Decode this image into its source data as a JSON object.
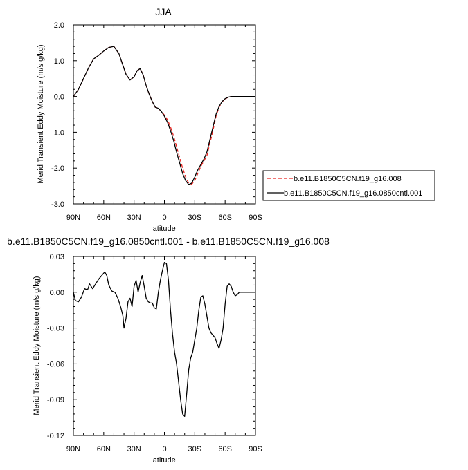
{
  "chart_data": [
    {
      "type": "line",
      "title": "JJA",
      "xlabel": "latitude",
      "ylabel": "Merid Transient Eddy Moisture (m/s g/kg)",
      "xlim": [
        -90,
        90
      ],
      "ylim": [
        -3.0,
        2.0
      ],
      "xticks": [
        -90,
        -60,
        -30,
        0,
        30,
        60,
        90
      ],
      "xtick_labels": [
        "90N",
        "60N",
        "30N",
        "0",
        "30S",
        "60S",
        "90S"
      ],
      "yticks": [
        2.0,
        1.0,
        0.0,
        -1.0,
        -2.0,
        -3.0
      ],
      "ytick_labels": [
        "2.0",
        "1.0",
        "0.0",
        "-1.0",
        "-2.0",
        "-3.0"
      ],
      "legend": "right",
      "series": [
        {
          "name": "b.e11.B1850C5CN.f19_g16.008",
          "color": "#e8211d",
          "dash": "dashed",
          "x": [
            -90,
            -85,
            -80,
            -75,
            -70,
            -65,
            -60,
            -55,
            -50,
            -45,
            -42,
            -38,
            -34,
            -30,
            -27,
            -24,
            -21,
            -18,
            -15,
            -12,
            -9,
            -6,
            -3,
            0,
            3,
            6,
            9,
            12,
            15,
            18,
            21,
            24,
            27,
            30,
            33,
            36,
            39,
            42,
            45,
            48,
            51,
            54,
            57,
            60,
            63,
            66,
            69,
            72,
            75,
            78,
            81,
            84,
            87,
            90
          ],
          "y": [
            0.0,
            0.2,
            0.5,
            0.8,
            1.05,
            1.15,
            1.27,
            1.37,
            1.4,
            1.2,
            0.95,
            0.62,
            0.46,
            0.55,
            0.72,
            0.78,
            0.6,
            0.3,
            0.06,
            -0.14,
            -0.3,
            -0.33,
            -0.42,
            -0.52,
            -0.65,
            -0.85,
            -1.1,
            -1.4,
            -1.7,
            -2.0,
            -2.25,
            -2.42,
            -2.45,
            -2.35,
            -2.15,
            -1.95,
            -1.8,
            -1.65,
            -1.3,
            -0.95,
            -0.55,
            -0.3,
            -0.15,
            -0.07,
            -0.02,
            0.0,
            0.0,
            0.0,
            0.0,
            0.0,
            0.0,
            0.0,
            0.0,
            0.0
          ]
        },
        {
          "name": "b.e11.B1850C5CN.f19_g16.0850cntl.001",
          "color": "#000000",
          "dash": "solid",
          "x": [
            -90,
            -85,
            -80,
            -75,
            -70,
            -65,
            -60,
            -55,
            -50,
            -45,
            -42,
            -38,
            -34,
            -30,
            -27,
            -24,
            -21,
            -18,
            -15,
            -12,
            -9,
            -6,
            -3,
            0,
            3,
            6,
            9,
            12,
            15,
            18,
            21,
            24,
            27,
            30,
            33,
            36,
            39,
            42,
            45,
            48,
            51,
            54,
            57,
            60,
            63,
            66,
            69,
            72,
            75,
            78,
            81,
            84,
            87,
            90
          ],
          "y": [
            0.0,
            0.2,
            0.5,
            0.8,
            1.05,
            1.15,
            1.27,
            1.37,
            1.4,
            1.2,
            0.95,
            0.62,
            0.46,
            0.55,
            0.72,
            0.78,
            0.6,
            0.3,
            0.06,
            -0.14,
            -0.3,
            -0.33,
            -0.42,
            -0.55,
            -0.72,
            -0.95,
            -1.22,
            -1.55,
            -1.85,
            -2.15,
            -2.35,
            -2.46,
            -2.42,
            -2.25,
            -2.05,
            -1.9,
            -1.75,
            -1.55,
            -1.2,
            -0.85,
            -0.5,
            -0.28,
            -0.14,
            -0.06,
            -0.02,
            0.0,
            0.0,
            0.0,
            0.0,
            0.0,
            0.0,
            0.0,
            0.0,
            0.0
          ]
        }
      ]
    },
    {
      "type": "line",
      "title": "b.e11.B1850C5CN.f19_g16.0850cntl.001 - b.e11.B1850C5CN.f19_g16.008",
      "xlabel": "latitude",
      "ylabel": "Merid Transient Eddy Moisture (m/s g/kg)",
      "xlim": [
        -90,
        90
      ],
      "ylim": [
        -0.12,
        0.03
      ],
      "xticks": [
        -90,
        -60,
        -30,
        0,
        30,
        60,
        90
      ],
      "xtick_labels": [
        "90N",
        "60N",
        "30N",
        "0",
        "30S",
        "60S",
        "90S"
      ],
      "yticks": [
        0.03,
        0.0,
        -0.03,
        -0.06,
        -0.09,
        -0.12
      ],
      "ytick_labels": [
        "0.03",
        "0.00",
        "-0.03",
        "-0.06",
        "-0.09",
        "-0.12"
      ],
      "series": [
        {
          "color": "#000000",
          "dash": "solid",
          "x": [
            -90,
            -88,
            -85,
            -82,
            -79,
            -76,
            -74,
            -71,
            -68,
            -65,
            -62,
            -59,
            -57,
            -55,
            -52,
            -49,
            -46,
            -43,
            -41,
            -40,
            -38,
            -36,
            -34,
            -32,
            -30,
            -28,
            -26,
            -24,
            -22,
            -20,
            -18,
            -16,
            -14,
            -12,
            -10,
            -8,
            -6,
            -4,
            -2,
            0,
            2,
            4,
            6,
            8,
            10,
            12,
            14,
            16,
            18,
            20,
            22,
            24,
            26,
            28,
            30,
            32,
            34,
            36,
            38,
            40,
            42,
            44,
            46,
            48,
            50,
            52,
            54,
            56,
            58,
            60,
            62,
            64,
            66,
            68,
            70,
            72,
            74,
            76,
            78,
            80,
            82,
            84,
            86,
            88,
            90
          ],
          "y": [
            0.0,
            -0.007,
            -0.008,
            -0.004,
            0.003,
            0.002,
            0.007,
            0.003,
            0.007,
            0.011,
            0.014,
            0.017,
            0.014,
            0.006,
            0.001,
            0.0,
            -0.005,
            -0.013,
            -0.02,
            -0.03,
            -0.022,
            -0.008,
            -0.005,
            -0.012,
            0.005,
            0.01,
            0.0,
            0.008,
            0.014,
            0.005,
            -0.005,
            -0.008,
            -0.009,
            -0.009,
            -0.013,
            -0.014,
            0.0,
            0.01,
            0.018,
            0.025,
            0.024,
            0.01,
            -0.015,
            -0.035,
            -0.05,
            -0.06,
            -0.075,
            -0.09,
            -0.102,
            -0.104,
            -0.085,
            -0.065,
            -0.055,
            -0.05,
            -0.04,
            -0.03,
            -0.015,
            -0.004,
            -0.003,
            -0.01,
            -0.02,
            -0.03,
            -0.034,
            -0.036,
            -0.038,
            -0.043,
            -0.047,
            -0.04,
            -0.03,
            -0.01,
            0.005,
            0.007,
            0.005,
            0.0,
            -0.003,
            -0.002,
            0.0,
            0.0,
            0.0,
            0.0,
            0.0,
            0.0,
            0.0,
            0.0,
            0.0
          ]
        }
      ]
    }
  ]
}
